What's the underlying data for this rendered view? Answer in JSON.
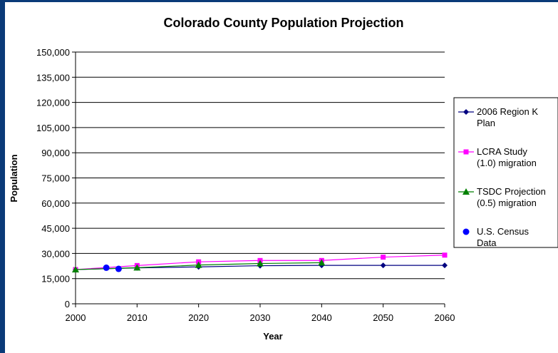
{
  "chart_data": {
    "type": "line",
    "title": "Colorado County Population Projection",
    "xlabel": "Year",
    "ylabel": "Population",
    "xlim": [
      2000,
      2060
    ],
    "ylim": [
      0,
      150000
    ],
    "x_ticks": [
      "2000",
      "2010",
      "2020",
      "2030",
      "2040",
      "2050",
      "2060"
    ],
    "y_ticks": [
      "0",
      "15,000",
      "30,000",
      "45,000",
      "60,000",
      "75,000",
      "90,000",
      "105,000",
      "120,000",
      "135,000",
      "150,000"
    ],
    "grid": "horizontal",
    "legend_position": "right",
    "series": [
      {
        "name": "2006 Region K Plan",
        "label_lines": [
          "2006 Region K",
          "Plan"
        ],
        "color": "#000080",
        "marker": "diamond",
        "line": true,
        "x": [
          2000,
          2010,
          2020,
          2030,
          2040,
          2050,
          2060
        ],
        "y": [
          20400,
          21400,
          22000,
          22700,
          22900,
          22900,
          22900
        ]
      },
      {
        "name": "LCRA Study (1.0) migration",
        "label_lines": [
          "LCRA Study",
          "(1.0) migration"
        ],
        "color": "#ff00ff",
        "marker": "square",
        "line": true,
        "x": [
          2000,
          2010,
          2020,
          2030,
          2040,
          2050,
          2060
        ],
        "y": [
          20400,
          22800,
          25000,
          25800,
          25800,
          27800,
          29000
        ]
      },
      {
        "name": "TSDC Projection (0.5) migration",
        "label_lines": [
          "TSDC Projection",
          "(0.5) migration"
        ],
        "color": "#008000",
        "marker": "triangle",
        "line": true,
        "x": [
          2000,
          2010,
          2020,
          2030,
          2040
        ],
        "y": [
          20400,
          21500,
          23100,
          24000,
          24500
        ]
      },
      {
        "name": "U.S. Census Data",
        "label_lines": [
          "U.S. Census",
          "Data"
        ],
        "color": "#0000ff",
        "marker": "circle",
        "line": false,
        "x": [
          2005,
          2007
        ],
        "y": [
          21500,
          20800
        ]
      }
    ]
  }
}
